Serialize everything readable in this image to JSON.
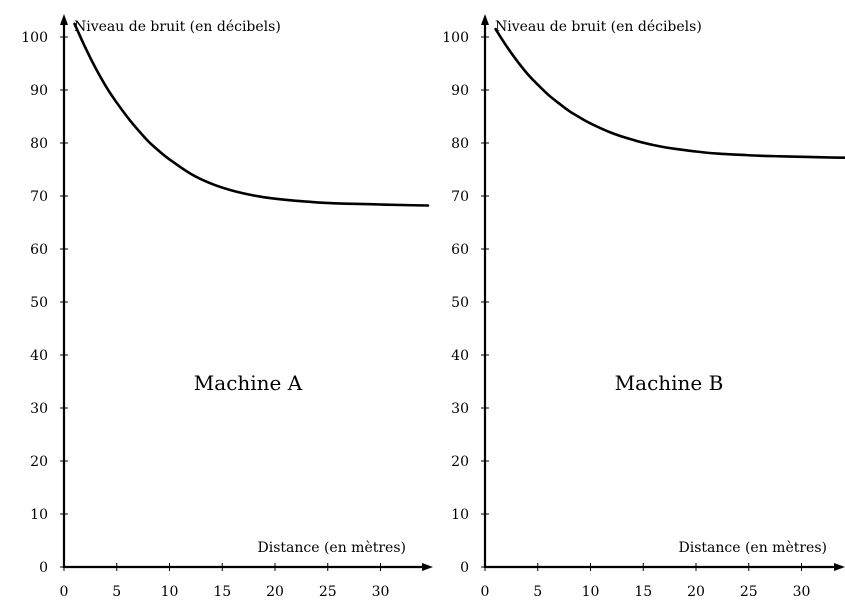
{
  "chart_data": [
    {
      "type": "line",
      "annotation": "Machine A",
      "xlabel": "Distance (en mètres)",
      "ylabel": "Niveau de bruit (en décibels)",
      "xlim": [
        0,
        35
      ],
      "ylim": [
        0,
        100
      ],
      "x_ticks": [
        0,
        5,
        10,
        15,
        20,
        25,
        30
      ],
      "y_ticks": [
        0,
        10,
        20,
        30,
        40,
        50,
        60,
        70,
        80,
        90,
        100
      ],
      "grid": false,
      "series": [
        {
          "color": "#000000",
          "x": [
            1,
            2,
            3,
            4,
            5,
            6,
            7,
            8,
            9,
            10,
            12,
            14,
            16,
            18,
            20,
            22,
            24,
            26,
            28,
            30,
            32,
            34.5
          ],
          "y": [
            102.5,
            98.1,
            94.1,
            90.6,
            87.6,
            84.9,
            82.5,
            80.3,
            78.5,
            76.9,
            74.2,
            72.3,
            71.0,
            70.1,
            69.5,
            69.1,
            68.8,
            68.6,
            68.5,
            68.4,
            68.3,
            68.2
          ]
        }
      ]
    },
    {
      "type": "line",
      "annotation": "Machine B",
      "xlabel": "Distance (en mètres)",
      "ylabel": "Niveau de bruit (en décibels)",
      "xlim": [
        0,
        35
      ],
      "ylim": [
        0,
        100
      ],
      "x_ticks": [
        0,
        5,
        10,
        15,
        20,
        25,
        30
      ],
      "y_ticks": [
        0,
        10,
        20,
        30,
        40,
        50,
        60,
        70,
        80,
        90,
        100
      ],
      "grid": false,
      "series": [
        {
          "color": "#000000",
          "x": [
            1,
            2,
            3,
            4,
            5,
            6,
            7,
            8,
            9,
            10,
            12,
            14,
            16,
            18,
            20,
            22,
            24,
            26,
            28,
            30,
            32,
            34.5
          ],
          "y": [
            101.5,
            98.4,
            95.6,
            93.1,
            91.0,
            89.1,
            87.5,
            86.0,
            84.8,
            83.7,
            81.9,
            80.6,
            79.6,
            78.9,
            78.4,
            78.0,
            77.8,
            77.6,
            77.5,
            77.4,
            77.3,
            77.2
          ]
        }
      ]
    }
  ]
}
